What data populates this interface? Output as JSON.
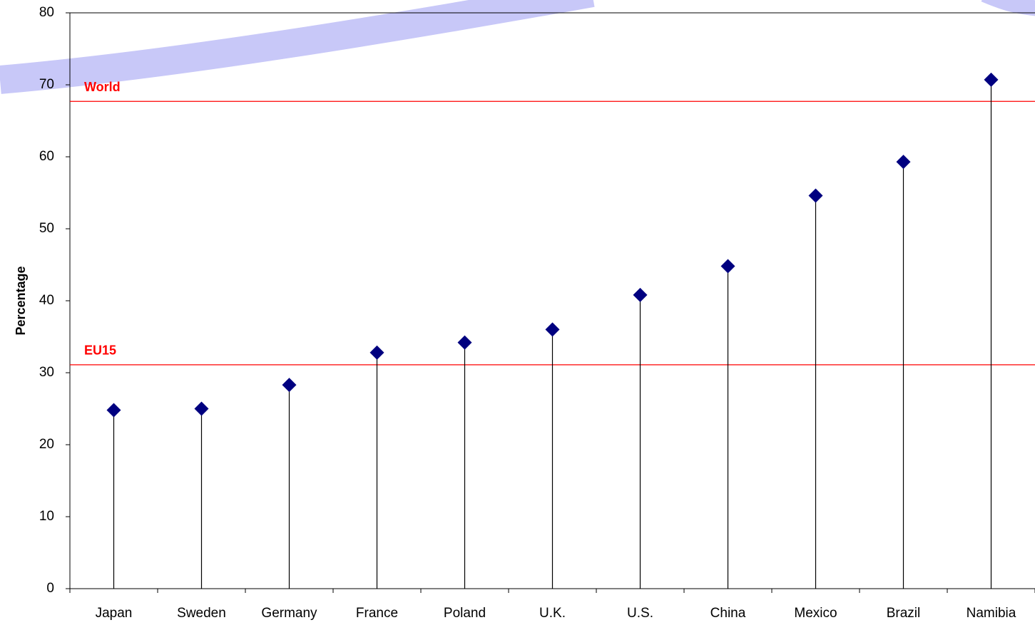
{
  "chart_data": {
    "type": "stem",
    "y_label": "Percentage",
    "categories": [
      "Japan",
      "Sweden",
      "Germany",
      "France",
      "Poland",
      "U.K.",
      "U.S.",
      "China",
      "Mexico",
      "Brazil",
      "Namibia"
    ],
    "values": [
      24.8,
      25.0,
      28.3,
      32.8,
      34.2,
      36.0,
      40.8,
      44.8,
      54.6,
      59.3,
      70.7
    ],
    "color": "#000080",
    "ylim": [
      0,
      80
    ],
    "yticks": [
      0,
      10,
      20,
      30,
      40,
      50,
      60,
      70,
      80
    ],
    "reference_lines": [
      {
        "name": "World",
        "value": 67.7,
        "color": "#ff0000"
      },
      {
        "name": "EU15",
        "value": 31.1,
        "color": "#ff0000"
      }
    ]
  }
}
